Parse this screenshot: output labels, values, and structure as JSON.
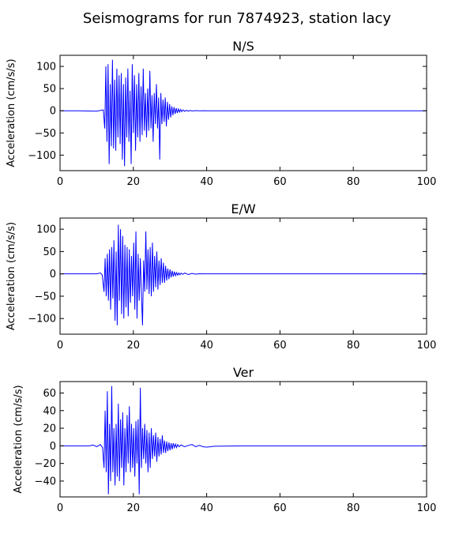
{
  "figure": {
    "title": "Seismograms for run 7874923, station lacy"
  },
  "chart_data": [
    {
      "type": "line",
      "title": "N/S",
      "xlabel": "",
      "ylabel": "Acceleration (cm/s/s)",
      "xlim": [
        0,
        100
      ],
      "ylim": [
        -135,
        125
      ],
      "xticks": [
        0,
        20,
        40,
        60,
        80,
        100
      ],
      "yticks": [
        -100,
        -50,
        0,
        50,
        100
      ],
      "grid": false,
      "series": [
        {
          "color": "#0000ff",
          "x": [
            0,
            5,
            10,
            11.8,
            12.2,
            12.5,
            12.8,
            13.1,
            13.4,
            13.7,
            14.0,
            14.3,
            14.6,
            14.9,
            15.2,
            15.5,
            15.8,
            16.1,
            16.4,
            16.7,
            17.0,
            17.3,
            17.6,
            17.9,
            18.2,
            18.5,
            18.8,
            19.1,
            19.4,
            19.7,
            20.0,
            20.3,
            20.6,
            20.9,
            21.2,
            21.5,
            21.8,
            22.1,
            22.4,
            22.7,
            23.0,
            23.3,
            23.6,
            23.9,
            24.2,
            24.5,
            24.8,
            25.1,
            25.4,
            25.7,
            26.0,
            26.3,
            26.6,
            26.9,
            27.2,
            27.5,
            27.8,
            28.1,
            28.4,
            28.7,
            29.0,
            29.3,
            29.6,
            29.9,
            30.2,
            30.5,
            30.8,
            31.1,
            31.4,
            31.7,
            32.0,
            32.3,
            32.6,
            32.9,
            33.2,
            33.6,
            34.0,
            34.5,
            35.0,
            35.5,
            36.0,
            37.0,
            38.0,
            39.0,
            40,
            50,
            60,
            70,
            80,
            90,
            100
          ],
          "y": [
            0,
            0,
            -1,
            2,
            -40,
            100,
            -70,
            105,
            -120,
            60,
            -80,
            115,
            -85,
            70,
            -90,
            95,
            -60,
            80,
            -75,
            85,
            -110,
            60,
            -125,
            75,
            -60,
            95,
            -70,
            45,
            -120,
            105,
            -50,
            80,
            -90,
            60,
            -60,
            85,
            -70,
            55,
            -55,
            95,
            -45,
            40,
            -60,
            50,
            -45,
            90,
            -40,
            35,
            -70,
            40,
            -30,
            60,
            -40,
            30,
            -110,
            40,
            -30,
            25,
            -25,
            30,
            -35,
            20,
            -20,
            15,
            -15,
            10,
            -10,
            8,
            -7,
            6,
            -5,
            4,
            -3,
            3,
            -2,
            2,
            -1.5,
            1,
            -1,
            0.8,
            -0.5,
            0.3,
            -0.2,
            0.1,
            0,
            0,
            0,
            0,
            0,
            0,
            0
          ]
        }
      ]
    },
    {
      "type": "line",
      "title": "E/W",
      "xlabel": "",
      "ylabel": "Acceleration (cm/s/s)",
      "xlim": [
        0,
        100
      ],
      "ylim": [
        -135,
        125
      ],
      "xticks": [
        0,
        20,
        40,
        60,
        80,
        100
      ],
      "yticks": [
        -100,
        -50,
        0,
        50,
        100
      ],
      "grid": false,
      "series": [
        {
          "color": "#0000ff",
          "x": [
            0,
            5,
            10,
            11.0,
            11.5,
            12.0,
            12.3,
            12.6,
            12.9,
            13.2,
            13.5,
            13.8,
            14.1,
            14.4,
            14.7,
            15.0,
            15.3,
            15.6,
            15.9,
            16.2,
            16.5,
            16.8,
            17.1,
            17.4,
            17.7,
            18.0,
            18.3,
            18.6,
            18.9,
            19.2,
            19.5,
            19.8,
            20.1,
            20.4,
            20.7,
            21.0,
            21.3,
            21.6,
            21.9,
            22.2,
            22.5,
            22.8,
            23.1,
            23.4,
            23.7,
            24.0,
            24.3,
            24.6,
            24.9,
            25.2,
            25.5,
            25.8,
            26.1,
            26.4,
            26.7,
            27.0,
            27.3,
            27.6,
            27.9,
            28.2,
            28.5,
            28.8,
            29.1,
            29.4,
            29.7,
            30.0,
            30.3,
            30.6,
            30.9,
            31.2,
            31.5,
            31.8,
            32.1,
            32.4,
            32.7,
            33.0,
            33.5,
            34.0,
            35.0,
            36.0,
            37.0,
            38.0,
            39.0,
            40,
            50,
            60,
            70,
            80,
            90,
            100
          ],
          "y": [
            0,
            0,
            0,
            2,
            -2,
            -40,
            35,
            -50,
            45,
            -60,
            55,
            -80,
            60,
            -55,
            75,
            -105,
            50,
            -115,
            110,
            -60,
            100,
            -90,
            85,
            -100,
            65,
            -75,
            60,
            -95,
            55,
            -65,
            40,
            -50,
            70,
            -80,
            95,
            -100,
            45,
            -60,
            35,
            -45,
            -115,
            30,
            -40,
            95,
            -35,
            55,
            -45,
            60,
            -50,
            70,
            -40,
            40,
            -30,
            50,
            -35,
            30,
            -25,
            35,
            -20,
            25,
            -20,
            18,
            -15,
            12,
            -12,
            10,
            -8,
            7,
            -6,
            5,
            -4,
            3,
            -3,
            2,
            -2,
            1.5,
            -1,
            2,
            -1.5,
            1,
            -0.5,
            0.3,
            0,
            0,
            0,
            0,
            0,
            0,
            0,
            0
          ]
        }
      ]
    },
    {
      "type": "line",
      "title": "Ver",
      "xlabel": "",
      "ylabel": "Acceleration (cm/s/s)",
      "xlim": [
        0,
        100
      ],
      "ylim": [
        -58,
        73
      ],
      "xticks": [
        0,
        20,
        40,
        60,
        80,
        100
      ],
      "yticks": [
        -40,
        -20,
        0,
        20,
        40,
        60
      ],
      "grid": false,
      "series": [
        {
          "color": "#0000ff",
          "x": [
            0,
            5,
            8,
            9,
            10,
            11.0,
            11.6,
            12.0,
            12.3,
            12.6,
            12.9,
            13.2,
            13.5,
            13.8,
            14.1,
            14.4,
            14.7,
            15.0,
            15.3,
            15.6,
            15.9,
            16.2,
            16.5,
            16.8,
            17.1,
            17.4,
            17.7,
            18.0,
            18.3,
            18.6,
            18.9,
            19.2,
            19.5,
            19.8,
            20.1,
            20.4,
            20.7,
            21.0,
            21.3,
            21.6,
            21.9,
            22.2,
            22.5,
            22.8,
            23.1,
            23.4,
            23.7,
            24.0,
            24.3,
            24.6,
            24.9,
            25.2,
            25.5,
            25.8,
            26.1,
            26.4,
            26.7,
            27.0,
            27.3,
            27.6,
            27.9,
            28.2,
            28.5,
            28.8,
            29.1,
            29.4,
            29.7,
            30.0,
            30.3,
            30.6,
            30.9,
            31.2,
            31.5,
            31.8,
            32.1,
            32.5,
            33.0,
            34.0,
            35.0,
            36.0,
            37.0,
            38.0,
            39.0,
            40,
            41,
            42,
            50,
            60,
            70,
            80,
            90,
            100
          ],
          "y": [
            0,
            0,
            0,
            1,
            -1,
            1.5,
            -2,
            -25,
            40,
            -30,
            62,
            -55,
            25,
            -40,
            68,
            -30,
            20,
            -45,
            25,
            -35,
            48,
            -40,
            30,
            -25,
            38,
            -45,
            20,
            -30,
            35,
            -20,
            45,
            -30,
            25,
            -25,
            20,
            -35,
            28,
            -20,
            30,
            -55,
            66,
            -25,
            20,
            -15,
            25,
            -20,
            18,
            -30,
            15,
            -25,
            20,
            -15,
            12,
            -12,
            15,
            -18,
            10,
            -12,
            8,
            -10,
            12,
            -8,
            6,
            -8,
            5,
            -6,
            4,
            -5,
            3,
            -4,
            3,
            -2,
            2,
            -2,
            1.5,
            -1,
            1,
            -1,
            0.5,
            1.5,
            -1,
            0.5,
            -1,
            -1.5,
            -1,
            -0.5,
            0,
            0,
            0,
            0,
            0,
            0
          ]
        }
      ]
    }
  ]
}
